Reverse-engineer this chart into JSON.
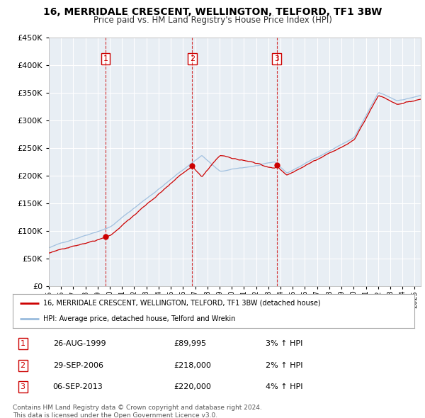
{
  "title": "16, MERRIDALE CRESCENT, WELLINGTON, TELFORD, TF1 3BW",
  "subtitle": "Price paid vs. HM Land Registry's House Price Index (HPI)",
  "ylim": [
    0,
    450000
  ],
  "yticks": [
    0,
    50000,
    100000,
    150000,
    200000,
    250000,
    300000,
    350000,
    400000,
    450000
  ],
  "xlim_start": 1995.0,
  "xlim_end": 2025.5,
  "sale_dates": [
    1999.65,
    2006.75,
    2013.68
  ],
  "sale_prices": [
    89995,
    218000,
    220000
  ],
  "sale_labels": [
    "1",
    "2",
    "3"
  ],
  "legend_line1": "16, MERRIDALE CRESCENT, WELLINGTON, TELFORD, TF1 3BW (detached house)",
  "legend_line2": "HPI: Average price, detached house, Telford and Wrekin",
  "table_data": [
    [
      "1",
      "26-AUG-1999",
      "£89,995",
      "3% ↑ HPI"
    ],
    [
      "2",
      "29-SEP-2006",
      "£218,000",
      "2% ↑ HPI"
    ],
    [
      "3",
      "06-SEP-2013",
      "£220,000",
      "4% ↑ HPI"
    ]
  ],
  "footer_line1": "Contains HM Land Registry data © Crown copyright and database right 2024.",
  "footer_line2": "This data is licensed under the Open Government Licence v3.0.",
  "red_color": "#CC0000",
  "blue_color": "#99BBDD",
  "dashed_color": "#CC0000",
  "background_color": "#FFFFFF",
  "chart_bg_color": "#E8EEF4",
  "grid_color": "#FFFFFF"
}
